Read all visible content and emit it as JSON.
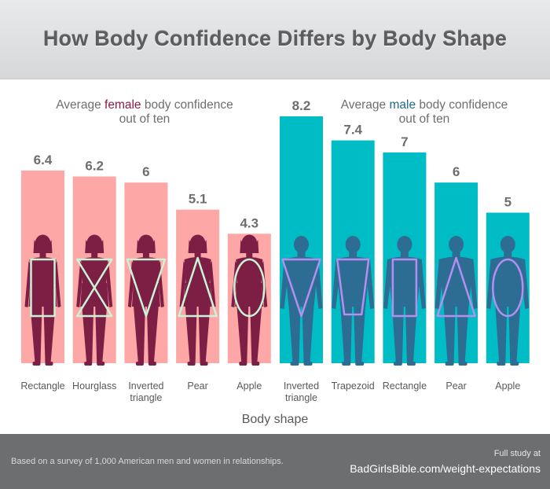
{
  "title": "How Body Confidence Differs by Body Shape",
  "colors": {
    "female_bar": "#fda7a7",
    "male_bar": "#00bcc4",
    "female_accent": "#8a1c4a",
    "male_accent": "#1f6b88",
    "female_figure": "#7d1f45",
    "male_figure": "#2e6d93",
    "female_shape": "#c8f4d8",
    "male_shape": "#b48ef0"
  },
  "chart_data": {
    "type": "bar",
    "xlabel": "Body shape",
    "ylabel": "",
    "ylim": [
      0,
      10
    ],
    "groups": [
      {
        "label_parts": [
          "Average ",
          "female",
          " body confidence",
          "out of ten"
        ],
        "categories": [
          "Rectangle",
          "Hourglass",
          "Inverted triangle",
          "Pear",
          "Apple"
        ],
        "values": [
          6.4,
          6.2,
          6,
          5.1,
          4.3
        ],
        "value_labels": [
          "6.4",
          "6.2",
          "6",
          "5.1",
          "4.3"
        ],
        "icons": [
          "rectangle-shape-icon",
          "hourglass-shape-icon",
          "inverted-triangle-shape-icon",
          "triangle-shape-icon",
          "oval-shape-icon"
        ]
      },
      {
        "label_parts": [
          "Average ",
          "male",
          " body confidence",
          "out of ten"
        ],
        "categories": [
          "Inverted triangle",
          "Trapezoid",
          "Rectangle",
          "Pear",
          "Apple"
        ],
        "values": [
          8.2,
          7.4,
          7,
          6,
          5
        ],
        "value_labels": [
          "8.2",
          "7.4",
          "7",
          "6",
          "5"
        ],
        "icons": [
          "inverted-triangle-shape-icon",
          "trapezoid-shape-icon",
          "rectangle-shape-icon",
          "triangle-shape-icon",
          "oval-shape-icon"
        ]
      }
    ]
  },
  "footer": {
    "note": "Based on a survey of 1,000 American men and women in relationships.",
    "study_label": "Full study at",
    "study_url": "BadGirlsBible.com/weight-expectations"
  }
}
